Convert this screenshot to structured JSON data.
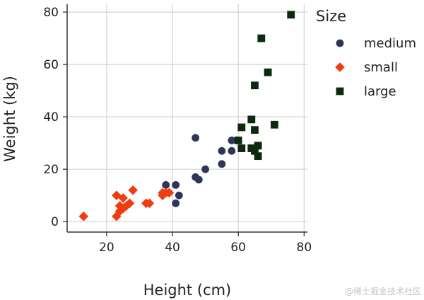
{
  "chart_data": {
    "type": "scatter",
    "xlabel": "Height (cm)",
    "ylabel": "Weight (kg)",
    "xlim": [
      8,
      81
    ],
    "ylim": [
      -4,
      83
    ],
    "xticks": [
      20,
      40,
      60,
      80
    ],
    "yticks": [
      0,
      20,
      40,
      60,
      80
    ],
    "grid": true,
    "legend": {
      "title": "Size",
      "placement": "right"
    },
    "series": [
      {
        "name": "medium",
        "marker": "circle",
        "color": "#2e3558",
        "points": [
          [
            38,
            14
          ],
          [
            41,
            14
          ],
          [
            41,
            7
          ],
          [
            42,
            10
          ],
          [
            47,
            32
          ],
          [
            47,
            17
          ],
          [
            48,
            16
          ],
          [
            50,
            20
          ],
          [
            55,
            22
          ],
          [
            55,
            27
          ],
          [
            58,
            27
          ],
          [
            58,
            31
          ]
        ]
      },
      {
        "name": "small",
        "marker": "diamond",
        "color": "#f03c10",
        "points": [
          [
            13,
            2
          ],
          [
            23,
            10
          ],
          [
            23,
            2
          ],
          [
            24,
            4
          ],
          [
            24,
            6
          ],
          [
            25,
            9
          ],
          [
            25,
            5
          ],
          [
            26,
            6
          ],
          [
            27,
            7
          ],
          [
            28,
            12
          ],
          [
            32,
            7
          ],
          [
            33,
            7
          ],
          [
            37,
            10
          ],
          [
            37,
            11
          ],
          [
            38,
            11
          ],
          [
            39,
            11
          ]
        ]
      },
      {
        "name": "large",
        "marker": "square",
        "color": "#0d2a10",
        "points": [
          [
            60,
            31
          ],
          [
            61,
            36
          ],
          [
            61,
            28
          ],
          [
            64,
            39
          ],
          [
            64,
            28
          ],
          [
            65,
            27
          ],
          [
            65,
            35
          ],
          [
            65,
            52
          ],
          [
            66,
            29
          ],
          [
            66,
            25
          ],
          [
            67,
            70
          ],
          [
            69,
            57
          ],
          [
            71,
            37
          ],
          [
            76,
            79
          ]
        ]
      }
    ]
  },
  "watermark": "@稀土掘金技术社区"
}
